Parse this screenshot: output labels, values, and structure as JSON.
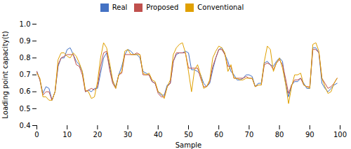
{
  "chart_data": {
    "type": "line",
    "xlabel": "Sample",
    "ylabel": "Loading point capacity(t)",
    "x": [
      0,
      1,
      2,
      3,
      4,
      5,
      6,
      7,
      8,
      9,
      10,
      11,
      12,
      13,
      14,
      15,
      16,
      17,
      18,
      19,
      20,
      21,
      22,
      23,
      24,
      25,
      26,
      27,
      28,
      29,
      30,
      31,
      32,
      33,
      34,
      35,
      36,
      37,
      38,
      39,
      40,
      41,
      42,
      43,
      44,
      45,
      46,
      47,
      48,
      49,
      50,
      51,
      52,
      53,
      54,
      55,
      56,
      57,
      58,
      59,
      60,
      61,
      62,
      63,
      64,
      65,
      66,
      67,
      68,
      69,
      70,
      71,
      72,
      73,
      74,
      75,
      76,
      77,
      78,
      79,
      80,
      81,
      82,
      83,
      84,
      85,
      86,
      87,
      88,
      89,
      90,
      91,
      92,
      93,
      94,
      95,
      96,
      97,
      98,
      99
    ],
    "series": [
      {
        "name": "Real",
        "color": "#4472C4",
        "values": [
          0.72,
          0.67,
          0.59,
          0.63,
          0.62,
          0.55,
          0.6,
          0.75,
          0.8,
          0.8,
          0.85,
          0.86,
          0.82,
          0.78,
          0.76,
          0.72,
          0.6,
          0.61,
          0.6,
          0.62,
          0.62,
          0.71,
          0.8,
          0.83,
          0.75,
          0.66,
          0.63,
          0.7,
          0.75,
          0.82,
          0.85,
          0.84,
          0.82,
          0.82,
          0.8,
          0.72,
          0.71,
          0.7,
          0.66,
          0.65,
          0.6,
          0.58,
          0.58,
          0.64,
          0.65,
          0.78,
          0.82,
          0.83,
          0.83,
          0.84,
          0.83,
          0.73,
          0.73,
          0.72,
          0.7,
          0.65,
          0.63,
          0.65,
          0.73,
          0.8,
          0.85,
          0.86,
          0.82,
          0.78,
          0.72,
          0.7,
          0.67,
          0.67,
          0.68,
          0.7,
          0.7,
          0.69,
          0.63,
          0.65,
          0.65,
          0.77,
          0.78,
          0.76,
          0.75,
          0.78,
          0.8,
          0.78,
          0.65,
          0.57,
          0.64,
          0.66,
          0.66,
          0.68,
          0.65,
          0.62,
          0.62,
          0.86,
          0.86,
          0.83,
          0.65,
          0.62,
          0.6,
          0.62,
          0.64,
          0.65
        ]
      },
      {
        "name": "Proposed",
        "color": "#C0504D",
        "values": [
          0.72,
          0.67,
          0.58,
          0.6,
          0.6,
          0.55,
          0.6,
          0.76,
          0.8,
          0.81,
          0.82,
          0.82,
          0.82,
          0.76,
          0.75,
          0.7,
          0.6,
          0.61,
          0.62,
          0.61,
          0.63,
          0.75,
          0.83,
          0.84,
          0.73,
          0.65,
          0.62,
          0.7,
          0.71,
          0.82,
          0.82,
          0.82,
          0.82,
          0.83,
          0.82,
          0.7,
          0.7,
          0.7,
          0.66,
          0.65,
          0.59,
          0.57,
          0.57,
          0.63,
          0.65,
          0.78,
          0.83,
          0.83,
          0.83,
          0.83,
          0.74,
          0.74,
          0.74,
          0.74,
          0.68,
          0.63,
          0.63,
          0.66,
          0.75,
          0.8,
          0.85,
          0.85,
          0.82,
          0.75,
          0.75,
          0.68,
          0.68,
          0.68,
          0.68,
          0.69,
          0.68,
          0.68,
          0.63,
          0.64,
          0.64,
          0.76,
          0.77,
          0.76,
          0.73,
          0.77,
          0.79,
          0.76,
          0.68,
          0.59,
          0.64,
          0.67,
          0.67,
          0.68,
          0.64,
          0.63,
          0.63,
          0.85,
          0.85,
          0.83,
          0.68,
          0.65,
          0.62,
          0.63,
          0.65,
          0.68
        ]
      },
      {
        "name": "Conventional",
        "color": "#E0A000",
        "values": [
          0.71,
          0.68,
          0.57,
          0.57,
          0.55,
          0.55,
          0.6,
          0.79,
          0.83,
          0.83,
          0.81,
          0.8,
          0.83,
          0.81,
          0.77,
          0.72,
          0.61,
          0.6,
          0.56,
          0.57,
          0.66,
          0.8,
          0.89,
          0.86,
          0.77,
          0.67,
          0.62,
          0.7,
          0.72,
          0.84,
          0.85,
          0.82,
          0.82,
          0.82,
          0.82,
          0.71,
          0.7,
          0.71,
          0.67,
          0.66,
          0.6,
          0.59,
          0.56,
          0.63,
          0.67,
          0.82,
          0.86,
          0.88,
          0.89,
          0.83,
          0.72,
          0.6,
          0.73,
          0.76,
          0.7,
          0.62,
          0.63,
          0.67,
          0.8,
          0.84,
          0.87,
          0.86,
          0.83,
          0.72,
          0.76,
          0.68,
          0.68,
          0.67,
          0.67,
          0.68,
          0.68,
          0.68,
          0.63,
          0.64,
          0.64,
          0.78,
          0.87,
          0.85,
          0.72,
          0.77,
          0.8,
          0.74,
          0.65,
          0.53,
          0.63,
          0.7,
          0.7,
          0.71,
          0.64,
          0.63,
          0.62,
          0.88,
          0.89,
          0.84,
          0.68,
          0.63,
          0.59,
          0.6,
          0.65,
          0.68
        ]
      }
    ],
    "xlim": [
      0,
      100
    ],
    "ylim": [
      0.4,
      1.0
    ],
    "xticks": [
      0,
      10,
      20,
      30,
      40,
      50,
      60,
      70,
      80,
      90,
      100
    ],
    "yticks": [
      0.4,
      0.5,
      0.6,
      0.7,
      0.8,
      0.9,
      {
        "value": 1.0,
        "label": "1.0"
      }
    ],
    "legend": "top",
    "grid": false
  }
}
